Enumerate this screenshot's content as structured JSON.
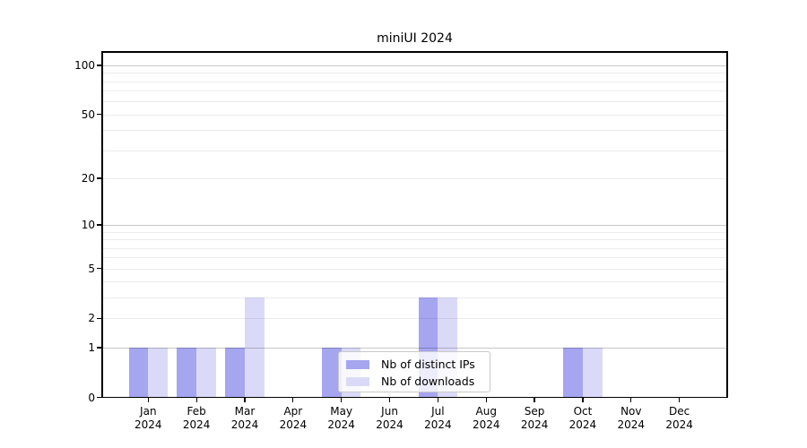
{
  "title": "miniUI 2024",
  "chart_data": {
    "type": "bar",
    "title": "miniUI 2024",
    "categories": [
      "Jan 2024",
      "Feb 2024",
      "Mar 2024",
      "Apr 2024",
      "May 2024",
      "Jun 2024",
      "Jul 2024",
      "Aug 2024",
      "Sep 2024",
      "Oct 2024",
      "Nov 2024",
      "Dec 2024"
    ],
    "series": [
      {
        "name": "Nb of distinct IPs",
        "color": "#a5a5f0",
        "values": [
          1,
          1,
          1,
          0,
          1,
          0,
          3,
          0,
          0,
          1,
          0,
          0
        ]
      },
      {
        "name": "Nb of downloads",
        "color": "#dadaf8",
        "values": [
          1,
          1,
          3,
          0,
          1,
          0,
          3,
          0,
          0,
          1,
          0,
          0
        ]
      }
    ],
    "xlabel": "",
    "ylabel": "",
    "y_scale": "log1p",
    "ylim": [
      0,
      120
    ],
    "y_ticks": [
      0,
      1,
      2,
      5,
      10,
      20,
      50,
      100
    ],
    "minor_gridlines": [
      2,
      3,
      4,
      5,
      6,
      7,
      8,
      9,
      20,
      30,
      40,
      50,
      60,
      70,
      80,
      90
    ],
    "major_gridlines": [
      1,
      10,
      100
    ],
    "grid": "on",
    "legend_position": "inside-lower-center",
    "bar_layout": "paired, dark series left of month tick, light series right"
  }
}
